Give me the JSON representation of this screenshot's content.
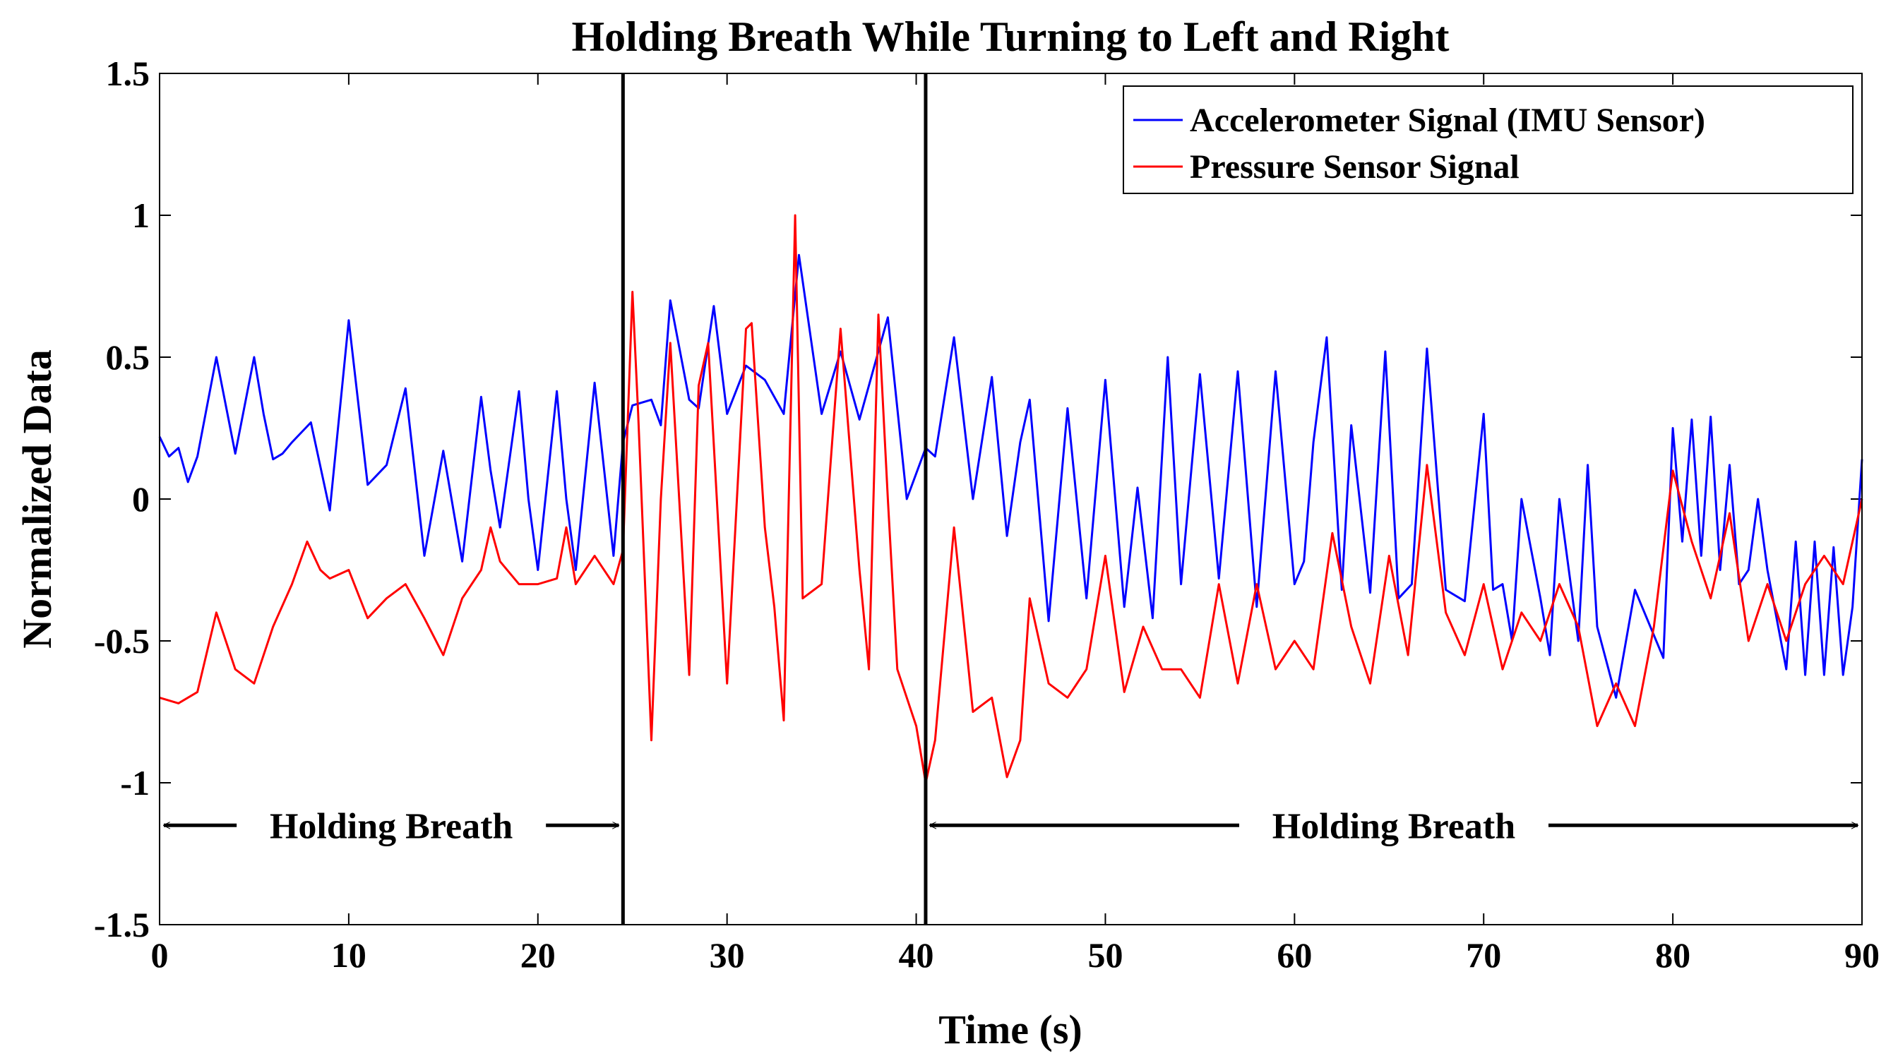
{
  "chart_data": {
    "type": "line",
    "title": "Holding Breath While Turning to Left and Right",
    "xlabel": "Time (s)",
    "ylabel": "Normalized Data",
    "xlim": [
      0,
      90
    ],
    "ylim": [
      -1.5,
      1.5
    ],
    "xticks": [
      0,
      10,
      20,
      30,
      40,
      50,
      60,
      70,
      80,
      90
    ],
    "xtick_labels": [
      "0",
      "10",
      "20",
      "30",
      "40",
      "50",
      "60",
      "70",
      "80",
      "90"
    ],
    "yticks": [
      -1.5,
      -1,
      -0.5,
      0,
      0.5,
      1,
      1.5
    ],
    "ytick_labels": [
      "-1.5",
      "-1",
      "-0.5",
      "0",
      "0.5",
      "1",
      "1.5"
    ],
    "legend_position": "top-right",
    "series": [
      {
        "name": "Accelerometer Signal (IMU Sensor)",
        "color": "#0000ff",
        "x": [
          0,
          0.5,
          1,
          1.5,
          2,
          3,
          4,
          5,
          5.5,
          6,
          6.5,
          7,
          8,
          9,
          10,
          11,
          12,
          13,
          14,
          15,
          16,
          17,
          17.5,
          18,
          19,
          19.5,
          20,
          21,
          21.5,
          22,
          23,
          24,
          24.5,
          25,
          26,
          26.5,
          27,
          28,
          28.5,
          29.3,
          30,
          31,
          32,
          33,
          33.8,
          35,
          36,
          37,
          38.5,
          39.5,
          40.5,
          41,
          42,
          43,
          44,
          44.8,
          45.5,
          46,
          47,
          48,
          49,
          50,
          51,
          51.7,
          52.5,
          53.3,
          54,
          55,
          56,
          57,
          58,
          59,
          60,
          60.5,
          61,
          61.7,
          62.5,
          63,
          64,
          64.8,
          65.5,
          66.2,
          67,
          68,
          69,
          70,
          70.5,
          71,
          71.5,
          72,
          73,
          73.5,
          74,
          75,
          75.5,
          76,
          77,
          78,
          79,
          79.5,
          80,
          80.5,
          81,
          81.5,
          82,
          82.5,
          83,
          83.5,
          84,
          84.5,
          85,
          86,
          86.5,
          87,
          87.5,
          88,
          88.5,
          89,
          89.5,
          90
        ],
        "y": [
          0.22,
          0.15,
          0.18,
          0.06,
          0.15,
          0.5,
          0.16,
          0.5,
          0.3,
          0.14,
          0.16,
          0.2,
          0.27,
          -0.04,
          0.63,
          0.05,
          0.12,
          0.39,
          -0.2,
          0.17,
          -0.22,
          0.36,
          0.1,
          -0.1,
          0.38,
          0.0,
          -0.25,
          0.38,
          0.0,
          -0.25,
          0.41,
          -0.2,
          0.2,
          0.33,
          0.35,
          0.26,
          0.7,
          0.35,
          0.32,
          0.68,
          0.3,
          0.47,
          0.42,
          0.3,
          0.86,
          0.3,
          0.52,
          0.28,
          0.64,
          0.0,
          0.18,
          0.15,
          0.57,
          0.0,
          0.43,
          -0.13,
          0.2,
          0.35,
          -0.43,
          0.32,
          -0.35,
          0.42,
          -0.38,
          0.04,
          -0.42,
          0.5,
          -0.3,
          0.44,
          -0.28,
          0.45,
          -0.38,
          0.45,
          -0.3,
          -0.22,
          0.2,
          0.57,
          -0.32,
          0.26,
          -0.33,
          0.52,
          -0.35,
          -0.3,
          0.53,
          -0.32,
          -0.36,
          0.3,
          -0.32,
          -0.3,
          -0.5,
          0.0,
          -0.35,
          -0.55,
          0.0,
          -0.5,
          0.12,
          -0.45,
          -0.7,
          -0.32,
          -0.48,
          -0.56,
          0.25,
          -0.15,
          0.28,
          -0.2,
          0.29,
          -0.25,
          0.12,
          -0.3,
          -0.25,
          0.0,
          -0.25,
          -0.6,
          -0.15,
          -0.62,
          -0.15,
          -0.62,
          -0.17,
          -0.62,
          -0.38,
          0.14
        ]
      },
      {
        "name": "Pressure Sensor Signal",
        "color": "#ff0000",
        "x": [
          0,
          1,
          2,
          3,
          3.5,
          4,
          5,
          6,
          7,
          7.8,
          8.5,
          9,
          10,
          11,
          12,
          13,
          14,
          15,
          16,
          17,
          17.5,
          18,
          19,
          20,
          21,
          21.5,
          22,
          23,
          24,
          24.5,
          25,
          25.3,
          26,
          26.5,
          27,
          28,
          28.5,
          29,
          30,
          31,
          31.3,
          32,
          32.5,
          33,
          33.6,
          34,
          35,
          36,
          37,
          37.5,
          38,
          38.5,
          39,
          40,
          40.5,
          41,
          42,
          43,
          44,
          44.8,
          45.5,
          46,
          47,
          48,
          49,
          50,
          51,
          52,
          53,
          54,
          55,
          56,
          57,
          58,
          59,
          60,
          61,
          62,
          63,
          64,
          65,
          66,
          67,
          68,
          69,
          70,
          71,
          72,
          73,
          74,
          75,
          76,
          77,
          78,
          79,
          80,
          81,
          82,
          83,
          84,
          85,
          86,
          87,
          88,
          89,
          90
        ],
        "y": [
          -0.7,
          -0.72,
          -0.68,
          -0.4,
          -0.5,
          -0.6,
          -0.65,
          -0.45,
          -0.3,
          -0.15,
          -0.25,
          -0.28,
          -0.25,
          -0.42,
          -0.35,
          -0.3,
          -0.42,
          -0.55,
          -0.35,
          -0.25,
          -0.1,
          -0.22,
          -0.3,
          -0.3,
          -0.28,
          -0.1,
          -0.3,
          -0.2,
          -0.3,
          -0.18,
          0.73,
          0.3,
          -0.85,
          0.0,
          0.55,
          -0.62,
          0.4,
          0.55,
          -0.65,
          0.6,
          0.62,
          -0.1,
          -0.38,
          -0.78,
          1.0,
          -0.35,
          -0.3,
          0.6,
          -0.25,
          -0.6,
          0.65,
          0.0,
          -0.6,
          -0.8,
          -1.0,
          -0.85,
          -0.1,
          -0.75,
          -0.7,
          -0.98,
          -0.85,
          -0.35,
          -0.65,
          -0.7,
          -0.6,
          -0.2,
          -0.68,
          -0.45,
          -0.6,
          -0.6,
          -0.7,
          -0.3,
          -0.65,
          -0.3,
          -0.6,
          -0.5,
          -0.6,
          -0.12,
          -0.45,
          -0.65,
          -0.2,
          -0.55,
          0.12,
          -0.4,
          -0.55,
          -0.3,
          -0.6,
          -0.4,
          -0.5,
          -0.3,
          -0.45,
          -0.8,
          -0.65,
          -0.8,
          -0.45,
          0.1,
          -0.15,
          -0.35,
          -0.05,
          -0.5,
          -0.3,
          -0.5,
          -0.3,
          -0.2,
          -0.3,
          0.0
        ]
      }
    ],
    "vertical_lines": [
      24.5,
      40.5
    ],
    "annotations": [
      {
        "text": "Holding Breath",
        "x_start": 0,
        "x_end": 24.5,
        "y": -1.15
      },
      {
        "text": "Holding Breath",
        "x_start": 40.5,
        "x_end": 90,
        "y": -1.15
      }
    ]
  }
}
